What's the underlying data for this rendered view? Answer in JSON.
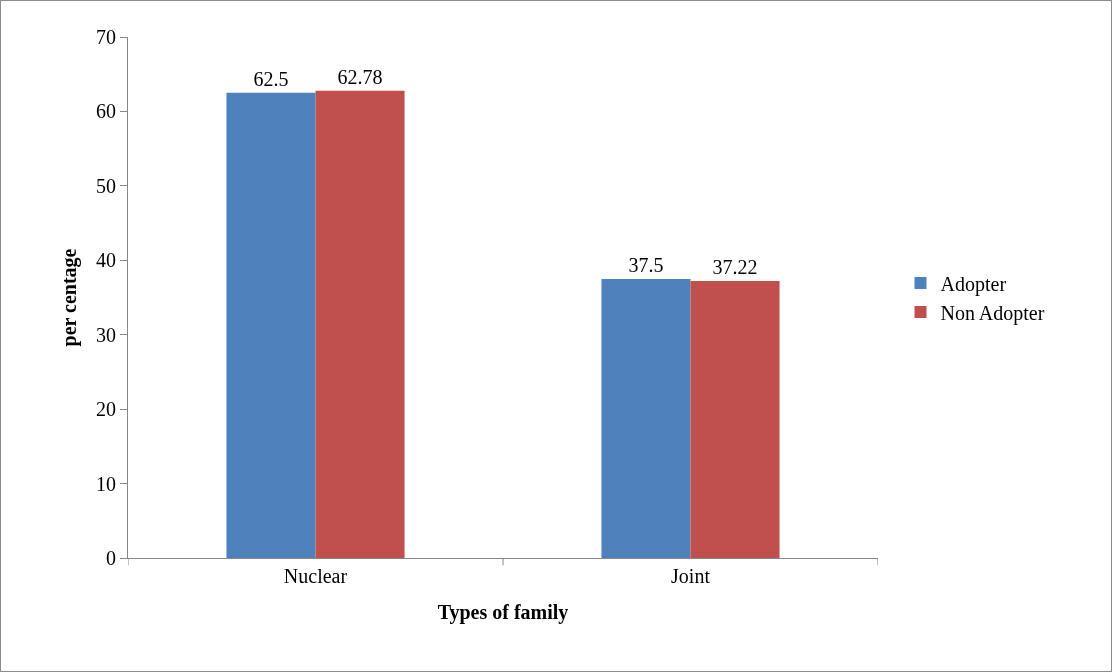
{
  "chart_data": {
    "type": "bar",
    "xlabel": "Types of family",
    "ylabel": "per centage",
    "categories": [
      "Nuclear",
      "Joint"
    ],
    "series": [
      {
        "name": "Adopter",
        "color": "#4f81bd",
        "values": [
          62.5,
          37.5
        ]
      },
      {
        "name": "Non Adopter",
        "color": "#c0504d",
        "values": [
          62.78,
          37.22
        ]
      }
    ],
    "ylim": [
      0,
      70
    ],
    "yticks": [
      0,
      10,
      20,
      30,
      40,
      50,
      60,
      70
    ],
    "grid": false,
    "legend": "right",
    "data_labels": true
  }
}
